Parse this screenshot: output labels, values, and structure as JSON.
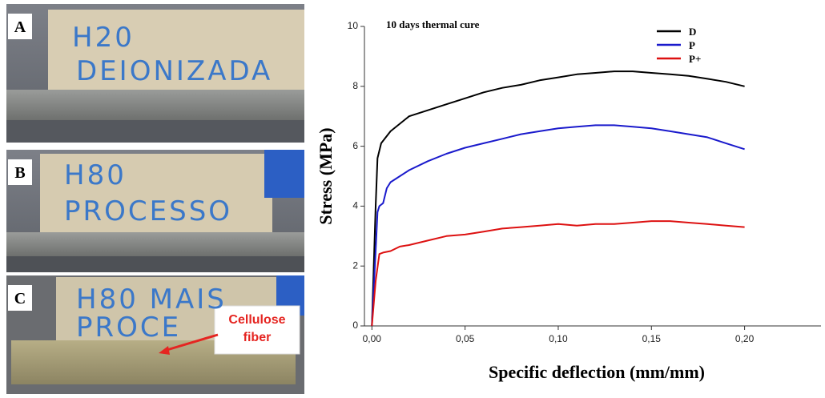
{
  "photos": [
    {
      "label": "A",
      "text": [
        "H20",
        "DEIONIZADA"
      ]
    },
    {
      "label": "B",
      "text": [
        "H80",
        "PROCESSO"
      ]
    },
    {
      "label": "C",
      "text": [
        "H80 MAIS",
        "PROCE"
      ],
      "annotation": "Cellulose fiber"
    }
  ],
  "chart_data": {
    "type": "line",
    "annotation": "10 days thermal cure",
    "x_label": "Specific deflection (mm/mm)",
    "y_label": "Stress (MPa)",
    "xlim": [
      -0.004,
      0.241
    ],
    "ylim": [
      0,
      10
    ],
    "xticks": [
      {
        "value": 0,
        "label": "0,00"
      },
      {
        "value": 0.05,
        "label": "0,05"
      },
      {
        "value": 0.1,
        "label": "0,10"
      },
      {
        "value": 0.15,
        "label": "0,15"
      },
      {
        "value": 0.2,
        "label": "0,20"
      }
    ],
    "yticks": [
      0,
      2,
      4,
      6,
      8,
      10
    ],
    "legend": "top-right",
    "series": [
      {
        "name": "D",
        "color": "#000000",
        "x": [
          0,
          0.002,
          0.003,
          0.005,
          0.01,
          0.02,
          0.03,
          0.04,
          0.05,
          0.06,
          0.07,
          0.08,
          0.09,
          0.1,
          0.11,
          0.12,
          0.13,
          0.14,
          0.15,
          0.16,
          0.17,
          0.18,
          0.19,
          0.2
        ],
        "values": [
          0,
          4,
          5.6,
          6.1,
          6.5,
          7.0,
          7.2,
          7.4,
          7.6,
          7.8,
          7.95,
          8.05,
          8.2,
          8.3,
          8.4,
          8.45,
          8.5,
          8.5,
          8.45,
          8.4,
          8.35,
          8.25,
          8.15,
          8.0
        ]
      },
      {
        "name": "P",
        "color": "#1a1acc",
        "x": [
          0,
          0.002,
          0.003,
          0.004,
          0.006,
          0.008,
          0.01,
          0.02,
          0.03,
          0.04,
          0.05,
          0.06,
          0.07,
          0.08,
          0.09,
          0.1,
          0.11,
          0.12,
          0.13,
          0.14,
          0.15,
          0.16,
          0.17,
          0.18,
          0.19,
          0.2
        ],
        "values": [
          0,
          2.5,
          3.8,
          4.0,
          4.1,
          4.6,
          4.8,
          5.2,
          5.5,
          5.75,
          5.95,
          6.1,
          6.25,
          6.4,
          6.5,
          6.6,
          6.65,
          6.7,
          6.7,
          6.65,
          6.6,
          6.5,
          6.4,
          6.3,
          6.1,
          5.9
        ]
      },
      {
        "name": "P+",
        "color": "#dd1111",
        "x": [
          0,
          0.002,
          0.004,
          0.006,
          0.01,
          0.015,
          0.02,
          0.03,
          0.04,
          0.05,
          0.06,
          0.07,
          0.08,
          0.09,
          0.1,
          0.11,
          0.12,
          0.13,
          0.14,
          0.15,
          0.16,
          0.17,
          0.18,
          0.19,
          0.2
        ],
        "values": [
          0,
          1.5,
          2.4,
          2.45,
          2.5,
          2.65,
          2.7,
          2.85,
          3.0,
          3.05,
          3.15,
          3.25,
          3.3,
          3.35,
          3.4,
          3.35,
          3.4,
          3.4,
          3.45,
          3.5,
          3.5,
          3.45,
          3.4,
          3.35,
          3.3
        ]
      }
    ]
  }
}
